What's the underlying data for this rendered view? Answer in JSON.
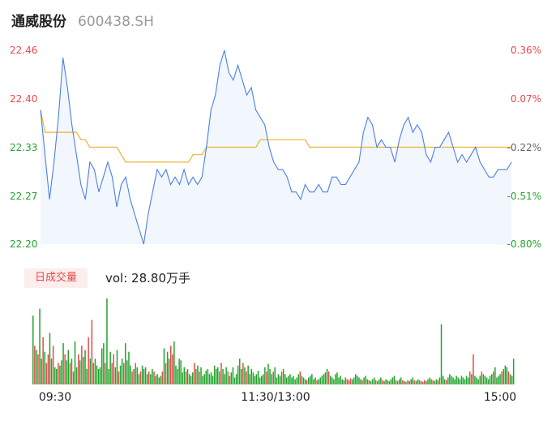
{
  "header": {
    "name": "通威股份",
    "code": "600438.SH"
  },
  "volume": {
    "tag": "日成交量",
    "text": "vol: 28.80万手"
  },
  "colors": {
    "price_line": "#4a7fe8",
    "avg_line": "#f0b032",
    "up": "#e84a4a",
    "down": "#22a52c",
    "area": "#f2f6fd"
  },
  "chart_data": {
    "type": "line",
    "x_tick_labels": [
      "09:30",
      "11:30/13:00",
      "15:00"
    ],
    "y_left_ticks": [
      "22.46",
      "22.40",
      "22.33",
      "22.27",
      "22.20"
    ],
    "y_right_ticks": [
      "0.36%",
      "0.07%",
      "-0.22%",
      "-0.51%",
      "-0.80%"
    ],
    "ylim": [
      22.2,
      22.46
    ],
    "reference_price": 22.38,
    "price": [
      22.38,
      22.32,
      22.26,
      22.31,
      22.37,
      22.45,
      22.41,
      22.36,
      22.32,
      22.28,
      22.26,
      22.31,
      22.3,
      22.27,
      22.29,
      22.31,
      22.29,
      22.25,
      22.28,
      22.29,
      22.26,
      22.24,
      22.22,
      22.2,
      22.24,
      22.27,
      22.3,
      22.29,
      22.3,
      22.28,
      22.29,
      22.28,
      22.3,
      22.28,
      22.29,
      22.28,
      22.29,
      22.33,
      22.38,
      22.4,
      22.44,
      22.46,
      22.43,
      22.42,
      22.44,
      22.42,
      22.4,
      22.41,
      22.38,
      22.37,
      22.36,
      22.33,
      22.31,
      22.3,
      22.3,
      22.29,
      22.27,
      22.27,
      22.26,
      22.28,
      22.27,
      22.27,
      22.28,
      22.27,
      22.27,
      22.29,
      22.29,
      22.28,
      22.28,
      22.29,
      22.3,
      22.31,
      22.35,
      22.37,
      22.36,
      22.33,
      22.34,
      22.33,
      22.33,
      22.31,
      22.34,
      22.36,
      22.37,
      22.35,
      22.36,
      22.35,
      22.32,
      22.31,
      22.33,
      22.33,
      22.34,
      22.35,
      22.33,
      22.31,
      22.32,
      22.31,
      22.32,
      22.33,
      22.31,
      22.3,
      22.29,
      22.29,
      22.3,
      22.3,
      22.3,
      22.31
    ],
    "avg_price": [
      22.38,
      22.35,
      22.35,
      22.35,
      22.35,
      22.35,
      22.35,
      22.35,
      22.35,
      22.34,
      22.34,
      22.33,
      22.33,
      22.33,
      22.33,
      22.33,
      22.33,
      22.33,
      22.32,
      22.31,
      22.31,
      22.31,
      22.31,
      22.31,
      22.31,
      22.31,
      22.31,
      22.31,
      22.31,
      22.31,
      22.31,
      22.31,
      22.31,
      22.31,
      22.32,
      22.32,
      22.32,
      22.33,
      22.33,
      22.33,
      22.33,
      22.33,
      22.33,
      22.33,
      22.33,
      22.33,
      22.33,
      22.33,
      22.33,
      22.34,
      22.34,
      22.34,
      22.34,
      22.34,
      22.34,
      22.34,
      22.34,
      22.34,
      22.34,
      22.34,
      22.33,
      22.33,
      22.33,
      22.33,
      22.33,
      22.33,
      22.33,
      22.33,
      22.33,
      22.33,
      22.33,
      22.33,
      22.33,
      22.33,
      22.33,
      22.33,
      22.33,
      22.33,
      22.33,
      22.33,
      22.33,
      22.33,
      22.33,
      22.33,
      22.33,
      22.33,
      22.33,
      22.33,
      22.33,
      22.33,
      22.33,
      22.33,
      22.33,
      22.33,
      22.33,
      22.33,
      22.33,
      22.33,
      22.33,
      22.33,
      22.33,
      22.33,
      22.33,
      22.33,
      22.33,
      22.33
    ],
    "volume": [
      80,
      45,
      40,
      35,
      88,
      30,
      55,
      38,
      25,
      35,
      60,
      30,
      45,
      20,
      18,
      25,
      22,
      28,
      48,
      35,
      28,
      40,
      25,
      30,
      15,
      50,
      20,
      35,
      28,
      45,
      32,
      40,
      18,
      55,
      30,
      75,
      25,
      30,
      22,
      18,
      20,
      42,
      48,
      25,
      100,
      18,
      38,
      25,
      35,
      20,
      40,
      15,
      22,
      30,
      25,
      48,
      28,
      38,
      22,
      15,
      18,
      25,
      20,
      12,
      15,
      22,
      18,
      20,
      12,
      15,
      12,
      18,
      15,
      10,
      12,
      8,
      10,
      15,
      42,
      25,
      38,
      30,
      45,
      35,
      50,
      22,
      18,
      30,
      28,
      14,
      20,
      15,
      18,
      12,
      10,
      14,
      25,
      18,
      22,
      15,
      20,
      10,
      12,
      16,
      18,
      12,
      14,
      10,
      22,
      18,
      20,
      15,
      25,
      18,
      12,
      20,
      15,
      10,
      14,
      20,
      8,
      12,
      22,
      30,
      18,
      25,
      20,
      15,
      22,
      12,
      18,
      14,
      10,
      12,
      16,
      8,
      10,
      12,
      20,
      15,
      24,
      18,
      12,
      15,
      20,
      8,
      12,
      10,
      15,
      18,
      12,
      8,
      10,
      12,
      8,
      10,
      6,
      8,
      12,
      15,
      10,
      8,
      6,
      5,
      8,
      10,
      12,
      6,
      8,
      5,
      6,
      8,
      10,
      12,
      14,
      18,
      15,
      10,
      8,
      6,
      12,
      14,
      8,
      10,
      6,
      5,
      8,
      6,
      5,
      7,
      6,
      8,
      12,
      10,
      8,
      6,
      5,
      8,
      10,
      6,
      5,
      4,
      6,
      8,
      5,
      4,
      6,
      8,
      5,
      4,
      6,
      5,
      4,
      6,
      8,
      10,
      5,
      4,
      6,
      8,
      5,
      4,
      3,
      5,
      4,
      6,
      8,
      5,
      4,
      6,
      5,
      4,
      3,
      5,
      4,
      6,
      8,
      6,
      5,
      4,
      6,
      5,
      8,
      70,
      10,
      6,
      5,
      8,
      12,
      10,
      8,
      6,
      10,
      8,
      6,
      10,
      8,
      6,
      10,
      8,
      15,
      12,
      35,
      10,
      8,
      6,
      10,
      15,
      12,
      10,
      8,
      6,
      10,
      12,
      15,
      20,
      8,
      10,
      12,
      15,
      18,
      22,
      20,
      15,
      12,
      10,
      30
    ]
  }
}
